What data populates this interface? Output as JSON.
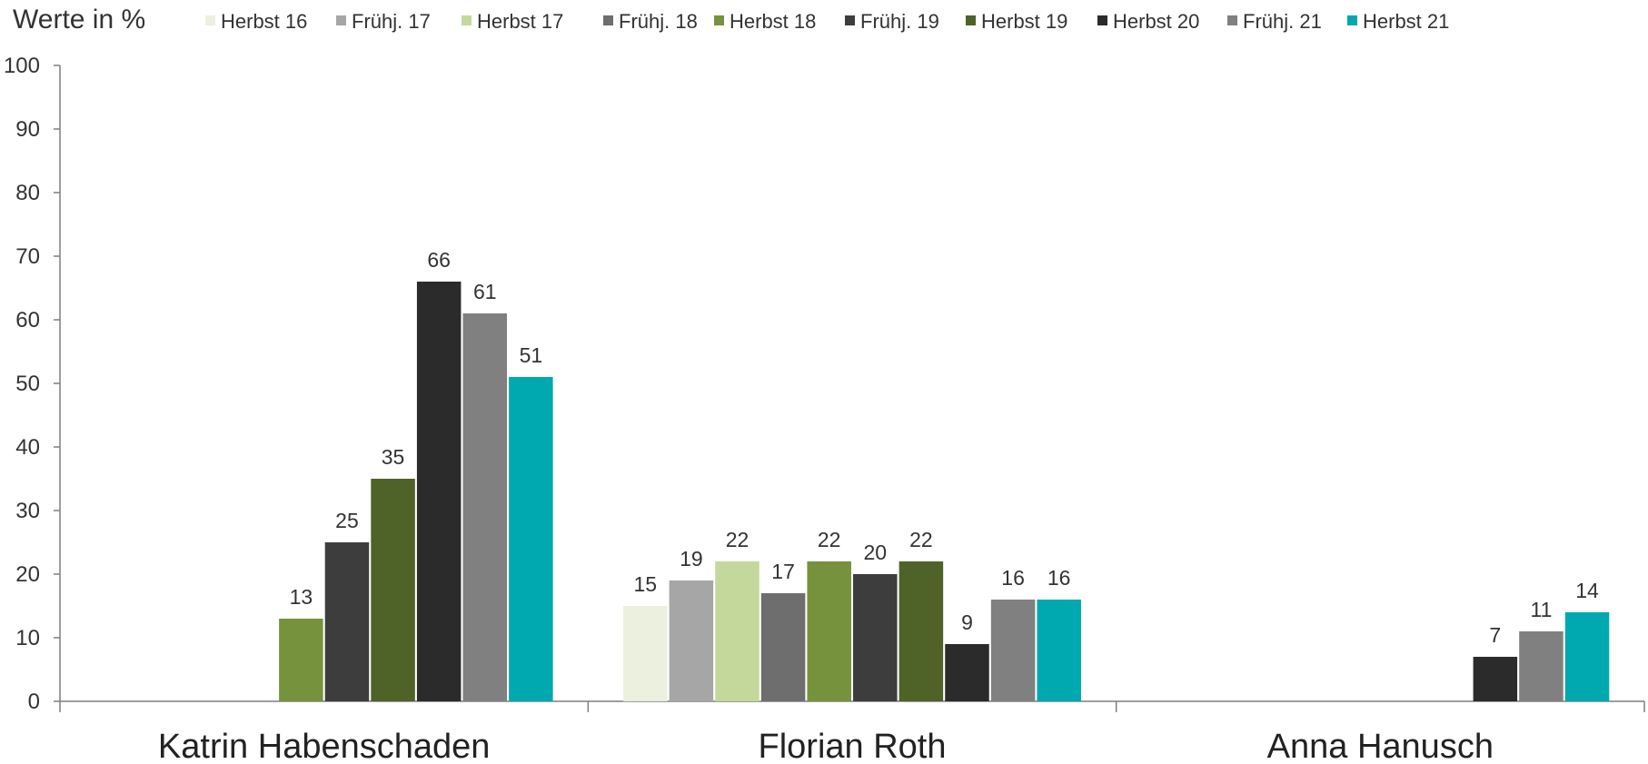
{
  "chart_data": {
    "type": "bar",
    "ylabel": "Werte in %",
    "ylim": [
      0,
      100
    ],
    "yticks": [
      0,
      10,
      20,
      30,
      40,
      50,
      60,
      70,
      80,
      90,
      100
    ],
    "categories": [
      "Katrin Habenschaden",
      "Florian Roth",
      "Anna Hanusch"
    ],
    "legend_position": "top",
    "series": [
      {
        "name": "Herbst 16",
        "color": "#ebf0df",
        "values": [
          null,
          15,
          null
        ]
      },
      {
        "name": "Frühj. 17",
        "color": "#a6a6a6",
        "values": [
          null,
          19,
          null
        ]
      },
      {
        "name": "Herbst 17",
        "color": "#c4d89c",
        "values": [
          null,
          22,
          null
        ]
      },
      {
        "name": "Frühj. 18",
        "color": "#6e6e6e",
        "values": [
          null,
          17,
          null
        ]
      },
      {
        "name": "Herbst 18",
        "color": "#76923c",
        "values": [
          13,
          22,
          null
        ]
      },
      {
        "name": "Frühj. 19",
        "color": "#3d3d3d",
        "values": [
          25,
          20,
          null
        ]
      },
      {
        "name": "Herbst 19",
        "color": "#4f6228",
        "values": [
          35,
          22,
          null
        ]
      },
      {
        "name": "Herbst 20",
        "color": "#2b2b2b",
        "values": [
          66,
          9,
          7
        ]
      },
      {
        "name": "Frühj. 21",
        "color": "#808080",
        "values": [
          61,
          16,
          11
        ]
      },
      {
        "name": "Herbst 21",
        "color": "#00a8b0",
        "values": [
          51,
          16,
          14
        ]
      }
    ]
  }
}
